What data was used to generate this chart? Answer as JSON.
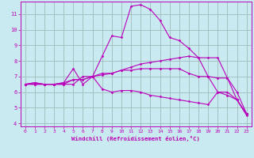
{
  "background_color": "#c8eaf0",
  "grid_color": "#a0bcbc",
  "line_color": "#bb00bb",
  "xlim": [
    -0.5,
    23.5
  ],
  "ylim": [
    3.8,
    11.8
  ],
  "yticks": [
    4,
    5,
    6,
    7,
    8,
    9,
    10,
    11
  ],
  "xticks": [
    0,
    1,
    2,
    3,
    4,
    5,
    6,
    7,
    8,
    9,
    10,
    11,
    12,
    13,
    14,
    15,
    16,
    17,
    18,
    19,
    20,
    21,
    22,
    23
  ],
  "xlabel": "Windchill (Refroidissement éolien,°C)",
  "series": [
    {
      "x": [
        0,
        1,
        2,
        3,
        4,
        5,
        6,
        7,
        8,
        9,
        10,
        11,
        12,
        13,
        14,
        15,
        16,
        17,
        18,
        19,
        20,
        21,
        22,
        23
      ],
      "y": [
        6.5,
        6.6,
        6.5,
        6.5,
        6.6,
        7.5,
        6.5,
        7.0,
        6.2,
        6.0,
        6.1,
        6.1,
        6.0,
        5.8,
        5.7,
        5.6,
        5.5,
        5.4,
        5.3,
        5.2,
        6.0,
        6.0,
        5.5,
        4.6
      ]
    },
    {
      "x": [
        0,
        1,
        2,
        3,
        4,
        5,
        6,
        7,
        8,
        9,
        10,
        11,
        12,
        13,
        14,
        15,
        16,
        17,
        18,
        19,
        20,
        21,
        22,
        23
      ],
      "y": [
        6.5,
        6.6,
        6.5,
        6.5,
        6.5,
        6.8,
        6.8,
        7.0,
        7.1,
        7.2,
        7.4,
        7.6,
        7.8,
        7.9,
        8.0,
        8.1,
        8.2,
        8.3,
        8.2,
        7.0,
        6.0,
        5.8,
        5.5,
        4.6
      ]
    },
    {
      "x": [
        0,
        1,
        2,
        3,
        4,
        5,
        6,
        7,
        8,
        9,
        10,
        11,
        12,
        13,
        14,
        15,
        16,
        17,
        18,
        19,
        20,
        21,
        22,
        23
      ],
      "y": [
        6.5,
        6.5,
        6.5,
        6.5,
        6.5,
        6.5,
        7.0,
        7.0,
        8.3,
        9.6,
        9.5,
        11.5,
        11.6,
        11.3,
        10.6,
        9.5,
        9.3,
        8.8,
        8.2,
        8.2,
        8.2,
        6.9,
        6.0,
        4.6
      ]
    },
    {
      "x": [
        0,
        1,
        2,
        3,
        4,
        5,
        6,
        7,
        8,
        9,
        10,
        11,
        12,
        13,
        14,
        15,
        16,
        17,
        18,
        19,
        20,
        21,
        22,
        23
      ],
      "y": [
        6.5,
        6.5,
        6.5,
        6.5,
        6.6,
        6.8,
        6.8,
        7.0,
        7.2,
        7.2,
        7.4,
        7.4,
        7.5,
        7.5,
        7.5,
        7.5,
        7.5,
        7.2,
        7.0,
        7.0,
        6.9,
        6.9,
        5.5,
        4.5
      ]
    }
  ]
}
